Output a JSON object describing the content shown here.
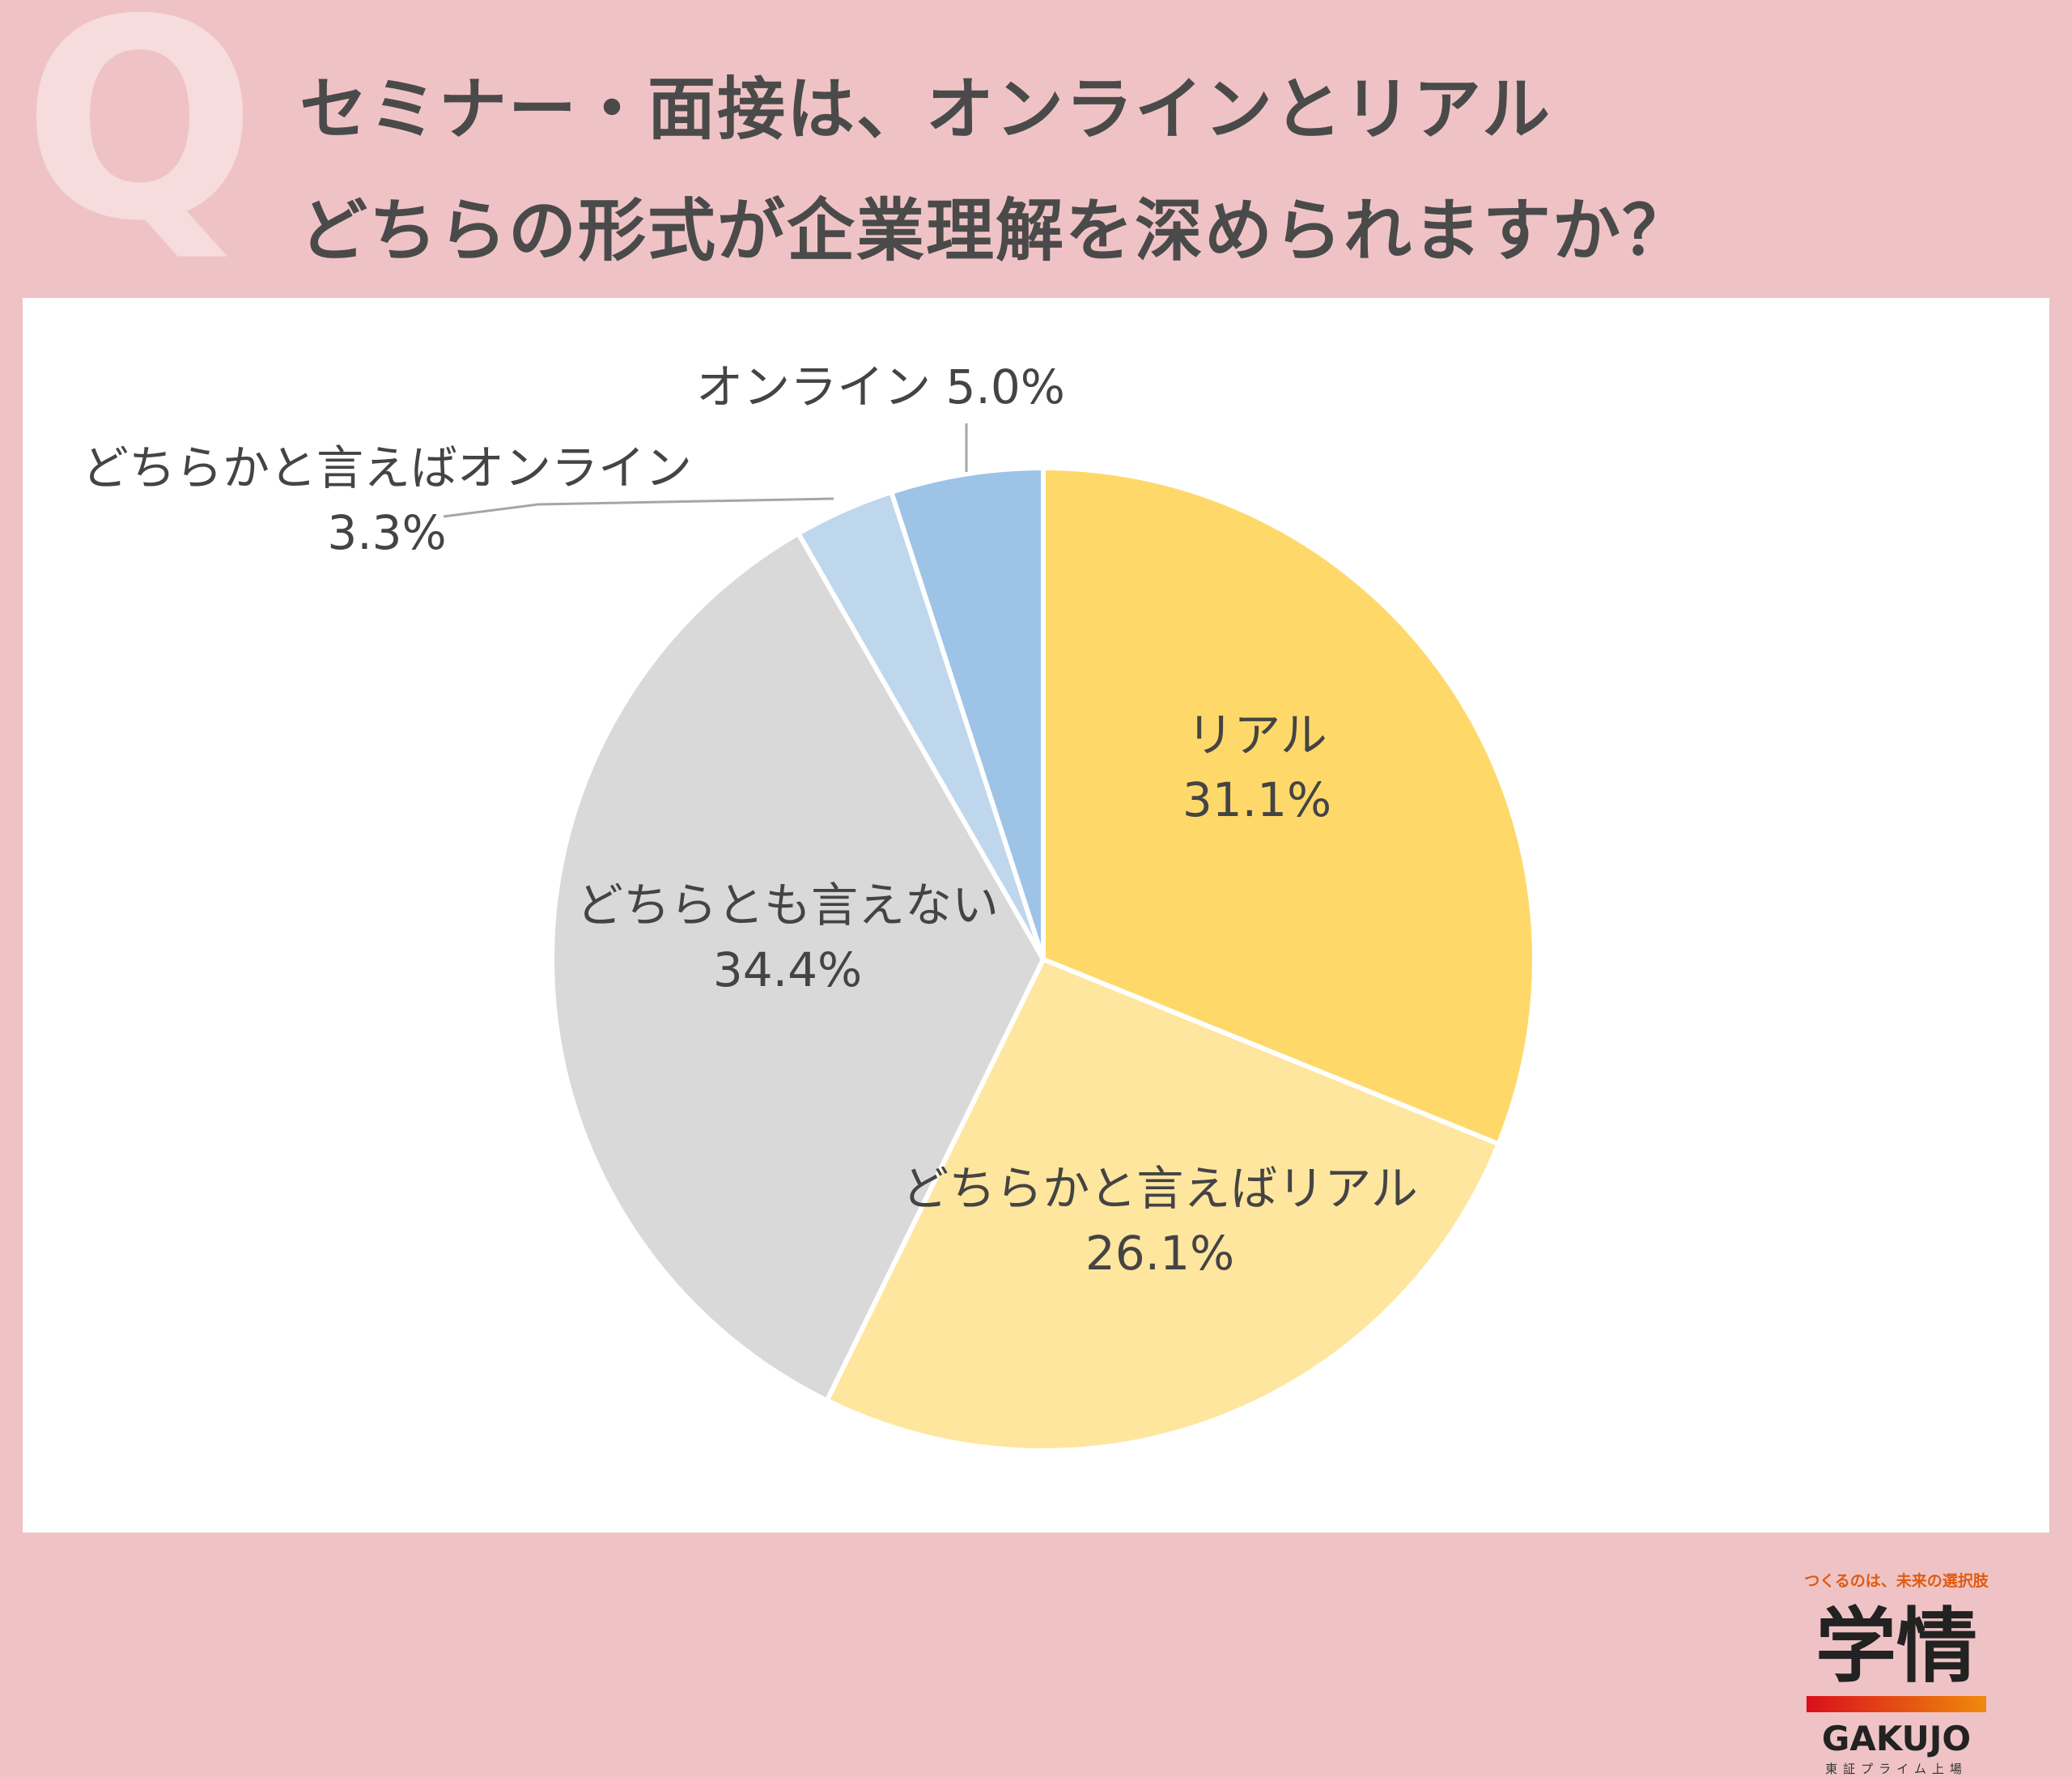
{
  "header": {
    "q_mark": "Q",
    "title_line1": "セミナー・面接は、オンラインとリアル",
    "title_line2": "どちらの形式が企業理解を深められますか？"
  },
  "logo": {
    "tagline": "つくるのは、未来の選択肢",
    "kanji": "学情",
    "roman": "GAKUJO",
    "listing": "東証プライム上場"
  },
  "chart_data": {
    "type": "pie",
    "title": "",
    "slices": [
      {
        "name": "リアル",
        "value": 31.1,
        "label": "31.1%",
        "color": "#fed96a"
      },
      {
        "name": "どちらかと言えばリアル",
        "value": 26.1,
        "label": "26.1%",
        "color": "#ffe69e"
      },
      {
        "name": "どちらとも言えない",
        "value": 34.4,
        "label": "34.4%",
        "color": "#d9d9d9"
      },
      {
        "name": "どちらかと言えばオンライン",
        "value": 3.3,
        "label": "3.3%",
        "color": "#bfd7ed"
      },
      {
        "name": "オンライン",
        "value": 5.0,
        "label": "5.0%",
        "color": "#9dc3e6"
      }
    ]
  }
}
